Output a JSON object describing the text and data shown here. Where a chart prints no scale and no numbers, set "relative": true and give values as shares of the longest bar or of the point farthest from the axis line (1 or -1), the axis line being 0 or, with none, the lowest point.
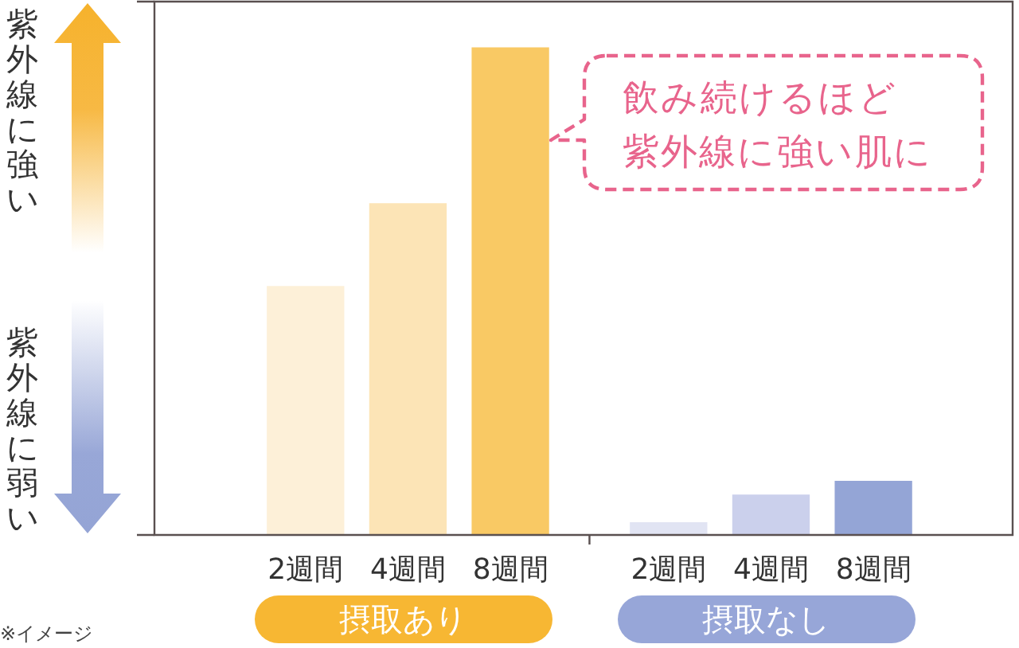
{
  "chart_data": {
    "type": "bar",
    "relative": true,
    "grid": false,
    "legend": "bottom",
    "categories": [
      "2週間",
      "4週間",
      "8週間",
      "2週間",
      "4週間",
      "8週間"
    ],
    "series": [
      {
        "name": "摂取あり",
        "color": "#f7b733",
        "colors": [
          "#fdf0d8",
          "#fce4b6",
          "#f9c964",
          null,
          null,
          null
        ],
        "values": [
          0.51,
          0.68,
          1,
          null,
          null,
          null
        ]
      },
      {
        "name": "摂取なし",
        "color": "#97a6d8",
        "colors": [
          null,
          null,
          null,
          "#e1e4f3",
          "#cbd0ec",
          "#94a5d6"
        ],
        "values": [
          null,
          null,
          null,
          0.025,
          0.082,
          0.11
        ]
      }
    ],
    "annotations": [
      "紫外線に強い",
      "紫外線に弱い",
      "飲み続けるほど",
      "紫外線に強い肌に",
      "※イメージ"
    ]
  }
}
